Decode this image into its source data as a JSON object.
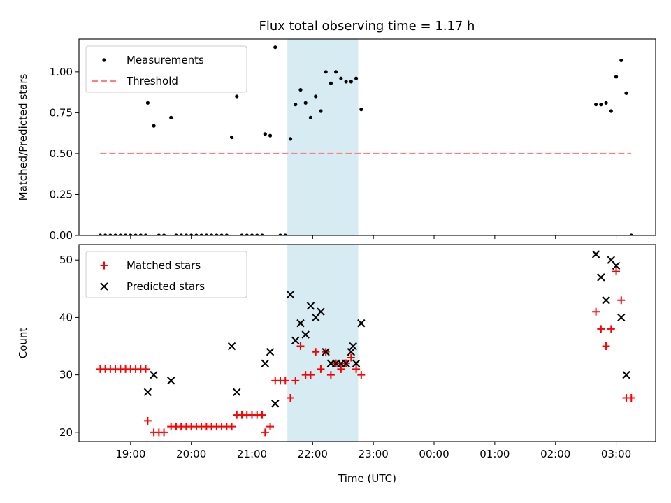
{
  "title": "Flux total observing time = 1.17 h",
  "colors": {
    "threshold": "#ff7f7f",
    "matched": "#ff0000",
    "predicted": "#000000",
    "highlight": "#add8e6"
  },
  "chart_data": [
    {
      "type": "scatter",
      "ylabel": "Matched/Predicted stars",
      "ylim": [
        0,
        1.2
      ],
      "xlim_hours": [
        18.15,
        27.65
      ],
      "y_ticks": [
        0,
        0.25,
        0.5,
        0.75,
        1.0
      ],
      "y_tick_labels": [
        "0.00",
        "0.25",
        "0.50",
        "0.75",
        "1.00"
      ],
      "highlight_span": [
        "21:35",
        "22:45"
      ],
      "legend": {
        "position": "upper-left",
        "entries": [
          "Measurements",
          "Threshold"
        ]
      },
      "threshold": {
        "name": "Threshold",
        "value": 0.5,
        "x_range": [
          "18:30",
          "03:15"
        ]
      },
      "series": [
        {
          "name": "Measurements",
          "points": [
            [
              "18:30",
              0
            ],
            [
              "18:35",
              0
            ],
            [
              "18:40",
              0
            ],
            [
              "18:45",
              0
            ],
            [
              "18:50",
              0
            ],
            [
              "18:55",
              0
            ],
            [
              "19:00",
              0
            ],
            [
              "19:05",
              0
            ],
            [
              "19:10",
              0
            ],
            [
              "19:15",
              0
            ],
            [
              "19:17",
              0.81
            ],
            [
              "19:23",
              0.67
            ],
            [
              "19:28",
              0
            ],
            [
              "19:33",
              0
            ],
            [
              "19:40",
              0.72
            ],
            [
              "19:45",
              0
            ],
            [
              "19:50",
              0
            ],
            [
              "19:55",
              0
            ],
            [
              "20:00",
              0
            ],
            [
              "20:05",
              0
            ],
            [
              "20:10",
              0
            ],
            [
              "20:15",
              0
            ],
            [
              "20:20",
              0
            ],
            [
              "20:25",
              0
            ],
            [
              "20:30",
              0
            ],
            [
              "20:35",
              0
            ],
            [
              "20:40",
              0.6
            ],
            [
              "20:45",
              0.85
            ],
            [
              "20:50",
              0
            ],
            [
              "20:55",
              0
            ],
            [
              "21:00",
              0
            ],
            [
              "21:05",
              0
            ],
            [
              "21:10",
              0
            ],
            [
              "21:13",
              0.62
            ],
            [
              "21:18",
              0.61
            ],
            [
              "21:23",
              1.15
            ],
            [
              "21:28",
              0
            ],
            [
              "21:33",
              0
            ],
            [
              "21:38",
              0.59
            ],
            [
              "21:43",
              0.8
            ],
            [
              "21:48",
              0.89
            ],
            [
              "21:53",
              0.81
            ],
            [
              "21:58",
              0.72
            ],
            [
              "22:03",
              0.85
            ],
            [
              "22:08",
              0.76
            ],
            [
              "22:13",
              1.0
            ],
            [
              "22:18",
              0.93
            ],
            [
              "22:23",
              1.0
            ],
            [
              "22:28",
              0.96
            ],
            [
              "22:33",
              0.94
            ],
            [
              "22:38",
              0.94
            ],
            [
              "22:43",
              0.96
            ],
            [
              "22:48",
              0.77
            ],
            [
              "02:40",
              0.8
            ],
            [
              "02:45",
              0.8
            ],
            [
              "02:50",
              0.81
            ],
            [
              "02:55",
              0.76
            ],
            [
              "03:00",
              0.97
            ],
            [
              "03:05",
              1.07
            ],
            [
              "03:10",
              0.87
            ],
            [
              "03:15",
              0
            ]
          ]
        }
      ]
    },
    {
      "type": "scatter",
      "xlabel": "Time (UTC)",
      "ylabel": "Count",
      "ylim": [
        18.4,
        52.7
      ],
      "xlim_hours": [
        18.15,
        27.65
      ],
      "y_ticks": [
        20,
        30,
        40,
        50
      ],
      "y_tick_labels": [
        "20",
        "30",
        "40",
        "50"
      ],
      "x_ticks": [
        "19:00",
        "20:00",
        "21:00",
        "22:00",
        "23:00",
        "00:00",
        "01:00",
        "02:00",
        "03:00"
      ],
      "highlight_span": [
        "21:35",
        "22:45"
      ],
      "legend": {
        "position": "upper-left",
        "entries": [
          "Matched stars",
          "Predicted stars"
        ]
      },
      "series": [
        {
          "name": "Matched stars",
          "marker": "plus",
          "points": [
            [
              "18:30",
              31
            ],
            [
              "18:35",
              31
            ],
            [
              "18:40",
              31
            ],
            [
              "18:45",
              31
            ],
            [
              "18:50",
              31
            ],
            [
              "18:55",
              31
            ],
            [
              "19:00",
              31
            ],
            [
              "19:05",
              31
            ],
            [
              "19:10",
              31
            ],
            [
              "19:15",
              31
            ],
            [
              "19:17",
              22
            ],
            [
              "19:23",
              20
            ],
            [
              "19:28",
              20
            ],
            [
              "19:33",
              20
            ],
            [
              "19:40",
              21
            ],
            [
              "19:45",
              21
            ],
            [
              "19:50",
              21
            ],
            [
              "19:55",
              21
            ],
            [
              "20:00",
              21
            ],
            [
              "20:05",
              21
            ],
            [
              "20:10",
              21
            ],
            [
              "20:15",
              21
            ],
            [
              "20:20",
              21
            ],
            [
              "20:25",
              21
            ],
            [
              "20:30",
              21
            ],
            [
              "20:35",
              21
            ],
            [
              "20:40",
              21
            ],
            [
              "20:45",
              23
            ],
            [
              "20:50",
              23
            ],
            [
              "20:55",
              23
            ],
            [
              "21:00",
              23
            ],
            [
              "21:05",
              23
            ],
            [
              "21:10",
              23
            ],
            [
              "21:13",
              20
            ],
            [
              "21:18",
              21
            ],
            [
              "21:23",
              29
            ],
            [
              "21:28",
              29
            ],
            [
              "21:33",
              29
            ],
            [
              "21:38",
              26
            ],
            [
              "21:43",
              29
            ],
            [
              "21:48",
              35
            ],
            [
              "21:53",
              30
            ],
            [
              "21:58",
              30
            ],
            [
              "22:03",
              34
            ],
            [
              "22:08",
              31
            ],
            [
              "22:13",
              34
            ],
            [
              "22:18",
              30
            ],
            [
              "22:23",
              32
            ],
            [
              "22:28",
              31
            ],
            [
              "22:33",
              32
            ],
            [
              "22:38",
              33
            ],
            [
              "22:43",
              31
            ],
            [
              "22:48",
              30
            ],
            [
              "02:40",
              41
            ],
            [
              "02:45",
              38
            ],
            [
              "02:50",
              35
            ],
            [
              "02:55",
              38
            ],
            [
              "03:00",
              48
            ],
            [
              "03:05",
              43
            ],
            [
              "03:10",
              26
            ],
            [
              "03:15",
              26
            ]
          ]
        },
        {
          "name": "Predicted stars",
          "marker": "x",
          "points": [
            [
              "19:17",
              27
            ],
            [
              "19:23",
              30
            ],
            [
              "19:40",
              29
            ],
            [
              "20:40",
              35
            ],
            [
              "20:45",
              27
            ],
            [
              "21:13",
              32
            ],
            [
              "21:18",
              34
            ],
            [
              "21:23",
              25
            ],
            [
              "21:38",
              44
            ],
            [
              "21:43",
              36
            ],
            [
              "21:48",
              39
            ],
            [
              "21:53",
              37
            ],
            [
              "21:58",
              42
            ],
            [
              "22:03",
              40
            ],
            [
              "22:08",
              41
            ],
            [
              "22:13",
              34
            ],
            [
              "22:18",
              32
            ],
            [
              "22:23",
              32
            ],
            [
              "22:28",
              32
            ],
            [
              "22:33",
              32
            ],
            [
              "22:38",
              34
            ],
            [
              "22:40",
              35
            ],
            [
              "22:43",
              32
            ],
            [
              "22:48",
              39
            ],
            [
              "02:40",
              51
            ],
            [
              "02:45",
              47
            ],
            [
              "02:50",
              43
            ],
            [
              "02:55",
              50
            ],
            [
              "03:00",
              49
            ],
            [
              "03:05",
              40
            ],
            [
              "03:10",
              30
            ]
          ]
        }
      ]
    }
  ]
}
